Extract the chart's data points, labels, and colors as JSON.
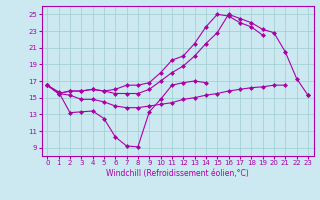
{
  "bg_color": "#cce8f0",
  "line_color": "#aa00aa",
  "grid_color": "#99cccc",
  "xlabel": "Windchill (Refroidissement éolien,°C)",
  "xlim": [
    -0.5,
    23.5
  ],
  "ylim": [
    8,
    26
  ],
  "yticks": [
    9,
    11,
    13,
    15,
    17,
    19,
    21,
    23,
    25
  ],
  "xticks": [
    0,
    1,
    2,
    3,
    4,
    5,
    6,
    7,
    8,
    9,
    10,
    11,
    12,
    13,
    14,
    15,
    16,
    17,
    18,
    19,
    20,
    21,
    22,
    23
  ],
  "series1_x": [
    0,
    1,
    2,
    3,
    4,
    5,
    6,
    7,
    8,
    9,
    10,
    11,
    12,
    13,
    14,
    15,
    16,
    17,
    18,
    19,
    20,
    21,
    22,
    23
  ],
  "series1_y": [
    16.5,
    15.7,
    13.2,
    13.3,
    13.4,
    12.5,
    10.3,
    9.2,
    9.1,
    13.3,
    14.8,
    16.5,
    16.8,
    17.0,
    16.8,
    null,
    null,
    null,
    null,
    null,
    null,
    null,
    null,
    null
  ],
  "series2_x": [
    0,
    1,
    2,
    3,
    4,
    5,
    6,
    7,
    8,
    9,
    10,
    11,
    12,
    13,
    14,
    15,
    16,
    17,
    18,
    19,
    20,
    21,
    22,
    23
  ],
  "series2_y": [
    16.5,
    15.5,
    15.3,
    14.8,
    14.8,
    14.5,
    14.0,
    13.8,
    13.8,
    14.0,
    14.2,
    14.4,
    14.8,
    15.0,
    15.3,
    15.5,
    15.8,
    16.0,
    16.2,
    16.3,
    16.5,
    16.5,
    null,
    15.3
  ],
  "series3_x": [
    0,
    1,
    2,
    3,
    4,
    5,
    6,
    7,
    8,
    9,
    10,
    11,
    12,
    13,
    14,
    15,
    16,
    17,
    18,
    19,
    20,
    21,
    22,
    23
  ],
  "series3_y": [
    16.5,
    15.5,
    15.8,
    15.8,
    16.0,
    15.8,
    15.5,
    15.5,
    15.5,
    16.0,
    17.0,
    18.0,
    18.8,
    20.0,
    21.5,
    22.8,
    25.0,
    24.5,
    24.0,
    23.2,
    22.8,
    20.5,
    17.3,
    15.3
  ],
  "series4_x": [
    0,
    1,
    2,
    3,
    4,
    5,
    6,
    7,
    8,
    9,
    10,
    11,
    12,
    13,
    14,
    15,
    16,
    17,
    18,
    19,
    20,
    21,
    22,
    23
  ],
  "series4_y": [
    16.5,
    15.5,
    15.8,
    15.8,
    16.0,
    15.8,
    16.0,
    16.5,
    16.5,
    16.8,
    18.0,
    19.5,
    20.0,
    21.5,
    23.5,
    25.0,
    24.8,
    24.0,
    23.5,
    22.5,
    null,
    null,
    null,
    null
  ]
}
